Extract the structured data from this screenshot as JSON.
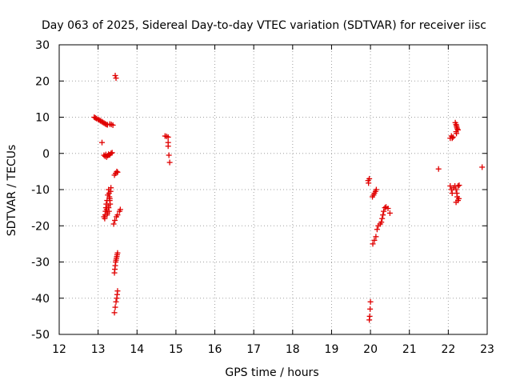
{
  "chart_data": {
    "type": "scatter",
    "title": "Day 063 of 2025, Sidereal Day-to-day VTEC variation (SDTVAR) for receiver iisc",
    "xlabel": "GPS time / hours",
    "ylabel": "SDTVAR / TECUs",
    "xlim": [
      12,
      23
    ],
    "ylim": [
      -50,
      30
    ],
    "xticks": [
      "12",
      "13",
      "14",
      "15",
      "16",
      "17",
      "18",
      "19",
      "20",
      "21",
      "22",
      "23"
    ],
    "yticks": [
      "30",
      "20",
      "10",
      "0",
      "-10",
      "-20",
      "-30",
      "-40",
      "-50"
    ],
    "grid": true,
    "marker": "plus",
    "color": "#e00000",
    "series": [
      {
        "name": "SDTVAR",
        "points": [
          [
            12.9,
            10.0
          ],
          [
            12.93,
            9.8
          ],
          [
            12.96,
            9.6
          ],
          [
            13.0,
            9.4
          ],
          [
            13.03,
            9.2
          ],
          [
            13.06,
            9.0
          ],
          [
            13.09,
            8.8
          ],
          [
            13.12,
            8.6
          ],
          [
            13.15,
            8.4
          ],
          [
            13.18,
            8.2
          ],
          [
            13.21,
            8.0
          ],
          [
            13.24,
            7.9
          ],
          [
            13.3,
            8.1
          ],
          [
            13.34,
            8.0
          ],
          [
            13.38,
            7.8
          ],
          [
            13.1,
            3.0
          ],
          [
            13.15,
            -0.5
          ],
          [
            13.18,
            -0.8
          ],
          [
            13.2,
            -0.3
          ],
          [
            13.22,
            -1.0
          ],
          [
            13.25,
            -0.6
          ],
          [
            13.27,
            -0.2
          ],
          [
            13.3,
            -0.4
          ],
          [
            13.33,
            0.0
          ],
          [
            13.36,
            0.2
          ],
          [
            13.44,
            21.5
          ],
          [
            13.46,
            20.8
          ],
          [
            13.27,
            -10.0
          ],
          [
            13.28,
            -11.0
          ],
          [
            13.29,
            -12.0
          ],
          [
            13.3,
            -13.0
          ],
          [
            13.31,
            -14.0
          ],
          [
            13.25,
            -11.5
          ],
          [
            13.23,
            -13.0
          ],
          [
            13.21,
            -14.0
          ],
          [
            13.2,
            -15.0
          ],
          [
            13.19,
            -16.0
          ],
          [
            13.18,
            -17.0
          ],
          [
            13.17,
            -18.0
          ],
          [
            13.22,
            -15.5
          ],
          [
            13.24,
            -16.5
          ],
          [
            13.26,
            -14.5
          ],
          [
            13.28,
            -16.0
          ],
          [
            13.3,
            -12.5
          ],
          [
            13.32,
            -10.5
          ],
          [
            13.33,
            -9.5
          ],
          [
            13.15,
            -17.5
          ],
          [
            13.23,
            -17.0
          ],
          [
            13.27,
            -15.0
          ],
          [
            13.4,
            -19.5
          ],
          [
            13.43,
            -18.5
          ],
          [
            13.47,
            -17.5
          ],
          [
            13.5,
            -17.0
          ],
          [
            13.55,
            -16.0
          ],
          [
            13.57,
            -15.5
          ],
          [
            13.42,
            -6.0
          ],
          [
            13.45,
            -5.5
          ],
          [
            13.48,
            -5.0
          ],
          [
            13.5,
            -5.2
          ],
          [
            13.42,
            -33.0
          ],
          [
            13.43,
            -32.0
          ],
          [
            13.44,
            -31.0
          ],
          [
            13.45,
            -30.0
          ],
          [
            13.46,
            -29.5
          ],
          [
            13.47,
            -29.0
          ],
          [
            13.48,
            -28.5
          ],
          [
            13.49,
            -28.0
          ],
          [
            13.5,
            -27.5
          ],
          [
            13.42,
            -44.0
          ],
          [
            13.44,
            -42.5
          ],
          [
            13.46,
            -41.0
          ],
          [
            13.48,
            -40.0
          ],
          [
            13.49,
            -39.0
          ],
          [
            13.5,
            -38.0
          ],
          [
            14.72,
            4.8
          ],
          [
            14.76,
            4.7
          ],
          [
            14.8,
            4.5
          ],
          [
            14.8,
            3.0
          ],
          [
            14.8,
            2.0
          ],
          [
            14.82,
            -0.5
          ],
          [
            14.84,
            -2.5
          ],
          [
            19.94,
            -7.5
          ],
          [
            19.97,
            -7.0
          ],
          [
            19.95,
            -8.2
          ],
          [
            20.05,
            -12.0
          ],
          [
            20.08,
            -11.5
          ],
          [
            20.1,
            -11.0
          ],
          [
            20.13,
            -10.5
          ],
          [
            20.15,
            -10.0
          ],
          [
            20.06,
            -25.0
          ],
          [
            20.1,
            -24.0
          ],
          [
            20.14,
            -23.0
          ],
          [
            20.17,
            -21.0
          ],
          [
            20.2,
            -20.0
          ],
          [
            20.25,
            -19.5
          ],
          [
            20.28,
            -19.0
          ],
          [
            20.3,
            -18.0
          ],
          [
            20.32,
            -17.0
          ],
          [
            20.34,
            -16.0
          ],
          [
            20.37,
            -15.0
          ],
          [
            20.4,
            -14.8
          ],
          [
            20.45,
            -15.2
          ],
          [
            20.5,
            -16.5
          ],
          [
            20.0,
            -41.0
          ],
          [
            19.99,
            -43.0
          ],
          [
            19.98,
            -45.0
          ],
          [
            19.97,
            -46.0
          ],
          [
            21.75,
            -4.3
          ],
          [
            22.05,
            4.2
          ],
          [
            22.08,
            4.8
          ],
          [
            22.1,
            4.2
          ],
          [
            22.12,
            4.5
          ],
          [
            22.18,
            8.5
          ],
          [
            22.2,
            8.0
          ],
          [
            22.21,
            7.6
          ],
          [
            22.22,
            7.2
          ],
          [
            22.23,
            6.8
          ],
          [
            22.25,
            6.5
          ],
          [
            22.2,
            6.0
          ],
          [
            22.21,
            5.5
          ],
          [
            22.05,
            -9.0
          ],
          [
            22.08,
            -10.0
          ],
          [
            22.1,
            -11.0
          ],
          [
            22.13,
            -9.5
          ],
          [
            22.17,
            -9.0
          ],
          [
            22.2,
            -10.0
          ],
          [
            22.22,
            -11.0
          ],
          [
            22.23,
            -12.0
          ],
          [
            22.25,
            -13.0
          ],
          [
            22.27,
            -12.5
          ],
          [
            22.2,
            -13.5
          ],
          [
            22.25,
            -9.0
          ],
          [
            22.28,
            -8.8
          ],
          [
            22.87,
            -3.8
          ]
        ]
      }
    ]
  }
}
